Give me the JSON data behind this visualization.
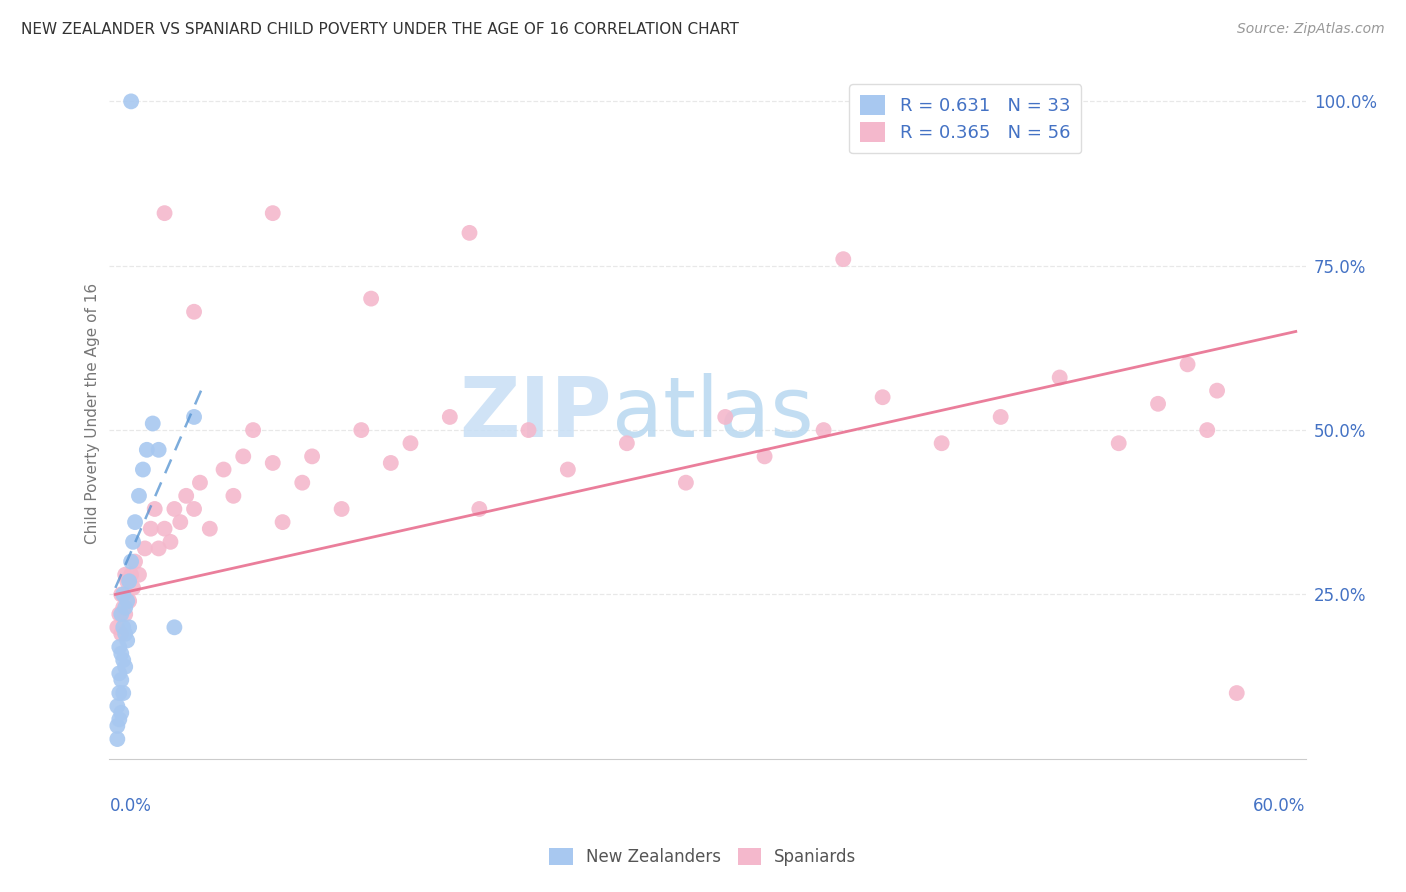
{
  "title": "NEW ZEALANDER VS SPANIARD CHILD POVERTY UNDER THE AGE OF 16 CORRELATION CHART",
  "source": "Source: ZipAtlas.com",
  "ylabel": "Child Poverty Under the Age of 16",
  "xlim": [
    0.0,
    0.6
  ],
  "ylim": [
    0.0,
    1.05
  ],
  "ytick_vals": [
    0.25,
    0.5,
    0.75,
    1.0
  ],
  "ytick_labels": [
    "25.0%",
    "50.0%",
    "75.0%",
    "100.0%"
  ],
  "nz_R": 0.631,
  "nz_N": 33,
  "sp_R": 0.365,
  "sp_N": 56,
  "nz_color": "#a8c8f0",
  "sp_color": "#f4b8cc",
  "nz_line_color": "#5090d0",
  "sp_line_color": "#e87090",
  "bg_color": "#ffffff",
  "watermark_zip": "ZIP",
  "watermark_atlas": "atlas",
  "watermark_color": "#ddeeff",
  "title_color": "#333333",
  "axis_label_color": "#4472c4",
  "ylabel_color": "#777777",
  "grid_color": "#e8e8e8",
  "nz_x": [
    0.001,
    0.001,
    0.001,
    0.002,
    0.002,
    0.002,
    0.002,
    0.003,
    0.003,
    0.003,
    0.003,
    0.004,
    0.004,
    0.004,
    0.004,
    0.005,
    0.005,
    0.005,
    0.006,
    0.006,
    0.007,
    0.007,
    0.008,
    0.009,
    0.01,
    0.012,
    0.014,
    0.016,
    0.019,
    0.022,
    0.03,
    0.04,
    0.008
  ],
  "nz_y": [
    0.03,
    0.05,
    0.08,
    0.06,
    0.1,
    0.13,
    0.17,
    0.07,
    0.12,
    0.16,
    0.22,
    0.1,
    0.15,
    0.2,
    0.25,
    0.14,
    0.19,
    0.23,
    0.18,
    0.24,
    0.2,
    0.27,
    0.3,
    0.33,
    0.36,
    0.4,
    0.44,
    0.47,
    0.51,
    0.47,
    0.2,
    0.52,
    1.0
  ],
  "sp_x": [
    0.001,
    0.002,
    0.003,
    0.003,
    0.004,
    0.005,
    0.005,
    0.006,
    0.007,
    0.008,
    0.009,
    0.01,
    0.012,
    0.015,
    0.018,
    0.02,
    0.022,
    0.025,
    0.028,
    0.03,
    0.033,
    0.036,
    0.04,
    0.043,
    0.048,
    0.055,
    0.06,
    0.065,
    0.07,
    0.08,
    0.085,
    0.095,
    0.1,
    0.115,
    0.125,
    0.14,
    0.15,
    0.17,
    0.185,
    0.21,
    0.23,
    0.26,
    0.29,
    0.31,
    0.33,
    0.36,
    0.39,
    0.42,
    0.45,
    0.48,
    0.51,
    0.53,
    0.545,
    0.555,
    0.56,
    0.57
  ],
  "sp_y": [
    0.2,
    0.22,
    0.19,
    0.25,
    0.23,
    0.22,
    0.28,
    0.27,
    0.24,
    0.28,
    0.26,
    0.3,
    0.28,
    0.32,
    0.35,
    0.38,
    0.32,
    0.35,
    0.33,
    0.38,
    0.36,
    0.4,
    0.38,
    0.42,
    0.35,
    0.44,
    0.4,
    0.46,
    0.5,
    0.45,
    0.36,
    0.42,
    0.46,
    0.38,
    0.5,
    0.45,
    0.48,
    0.52,
    0.38,
    0.5,
    0.44,
    0.48,
    0.42,
    0.52,
    0.46,
    0.5,
    0.55,
    0.48,
    0.52,
    0.58,
    0.48,
    0.54,
    0.6,
    0.5,
    0.56,
    0.1
  ],
  "sp_outliers_x": [
    0.025,
    0.08,
    0.13,
    0.04,
    0.18,
    0.37
  ],
  "sp_outliers_y": [
    0.83,
    0.83,
    0.7,
    0.68,
    0.8,
    0.76
  ],
  "sp_line_x": [
    0.0,
    0.6
  ],
  "sp_line_y": [
    0.25,
    0.65
  ],
  "nz_line_x": [
    0.0,
    0.045
  ],
  "nz_line_y": [
    0.26,
    0.57
  ]
}
